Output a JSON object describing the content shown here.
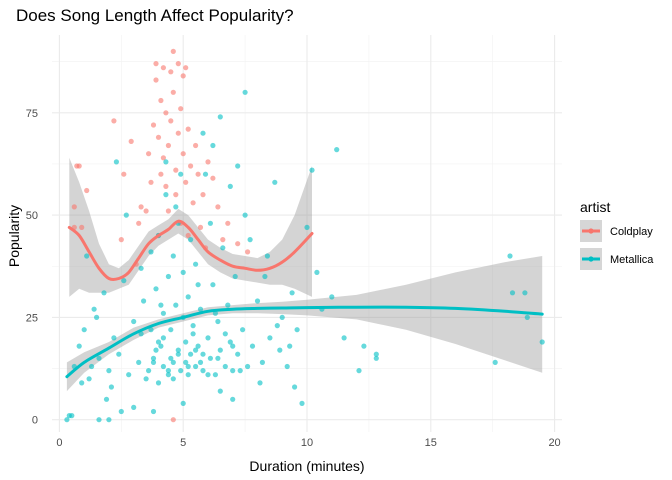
{
  "chart_data": {
    "type": "scatter",
    "title": "Does Song Length Affect Popularity?",
    "xlabel": "Duration (minutes)",
    "ylabel": "Popularity",
    "xlim": [
      -0.3,
      20.3
    ],
    "ylim": [
      -3,
      94
    ],
    "x_ticks": [
      0,
      5,
      10,
      15,
      20
    ],
    "y_ticks": [
      0,
      25,
      50,
      75
    ],
    "grid": true,
    "legend": {
      "title": "artist",
      "placement": "right"
    },
    "colors": {
      "Coldplay": "#F8766D",
      "Metallica": "#00BFC4",
      "band": "#999999"
    },
    "series": [
      {
        "name": "Coldplay",
        "points": [
          [
            0.7,
            62
          ],
          [
            0.8,
            62
          ],
          [
            0.6,
            52
          ],
          [
            0.9,
            47
          ],
          [
            0.6,
            47
          ],
          [
            1.1,
            56
          ],
          [
            2.2,
            73
          ],
          [
            2.6,
            60
          ],
          [
            2.9,
            68
          ],
          [
            3.2,
            48
          ],
          [
            3.3,
            52
          ],
          [
            3.5,
            51
          ],
          [
            3.6,
            65
          ],
          [
            3.7,
            58
          ],
          [
            3.8,
            72
          ],
          [
            3.9,
            87
          ],
          [
            3.9,
            83
          ],
          [
            4.0,
            69
          ],
          [
            4.1,
            60
          ],
          [
            4.1,
            78
          ],
          [
            4.2,
            64
          ],
          [
            4.2,
            86
          ],
          [
            4.3,
            75
          ],
          [
            4.3,
            57
          ],
          [
            4.4,
            67
          ],
          [
            4.4,
            51
          ],
          [
            4.5,
            73
          ],
          [
            4.5,
            85
          ],
          [
            4.6,
            90
          ],
          [
            4.6,
            80
          ],
          [
            4.7,
            61
          ],
          [
            4.7,
            55
          ],
          [
            4.8,
            70
          ],
          [
            4.8,
            87
          ],
          [
            4.9,
            76
          ],
          [
            4.9,
            48
          ],
          [
            5.0,
            65
          ],
          [
            5.0,
            84
          ],
          [
            5.1,
            58
          ],
          [
            5.1,
            86
          ],
          [
            5.2,
            71
          ],
          [
            5.2,
            45
          ],
          [
            5.3,
            62
          ],
          [
            5.4,
            53
          ],
          [
            5.5,
            67
          ],
          [
            5.6,
            60
          ],
          [
            5.7,
            47
          ],
          [
            5.8,
            55
          ],
          [
            6.0,
            63
          ],
          [
            6.2,
            59
          ],
          [
            6.4,
            52
          ],
          [
            6.6,
            44
          ],
          [
            6.8,
            48
          ],
          [
            7.2,
            43
          ],
          [
            7.6,
            41
          ],
          [
            4.6,
            0
          ],
          [
            2.5,
            44
          ],
          [
            3.1,
            38
          ],
          [
            4.0,
            45
          ],
          [
            5.9,
            42
          ]
        ],
        "smooth": {
          "x": [
            0.4,
            0.8,
            1.2,
            1.6,
            2.0,
            2.4,
            2.8,
            3.2,
            3.6,
            4.0,
            4.4,
            4.8,
            5.2,
            5.6,
            6.0,
            6.5,
            7.0,
            7.5,
            8.0,
            8.5,
            9.0,
            9.5,
            10.2
          ],
          "y": [
            47,
            45,
            41,
            37,
            34.5,
            34.5,
            36,
            39.5,
            43,
            45,
            46.5,
            48.5,
            47,
            44,
            41,
            39,
            37.5,
            37,
            36.5,
            37,
            38.5,
            41,
            45.5
          ],
          "lo": [
            30,
            32,
            31,
            31,
            31,
            32,
            33,
            36.5,
            40,
            42.5,
            44,
            45.5,
            44,
            41,
            38,
            36,
            34.5,
            34,
            33.5,
            33,
            33,
            32,
            30
          ],
          "hi": [
            64,
            58,
            51,
            43,
            38,
            37,
            39,
            42.5,
            46,
            47.5,
            49,
            51.5,
            50,
            47,
            44,
            42,
            40.5,
            40,
            39.5,
            41,
            44,
            50,
            62
          ]
        }
      },
      {
        "name": "Metallica",
        "points": [
          [
            0.3,
            0
          ],
          [
            0.4,
            1
          ],
          [
            0.5,
            1
          ],
          [
            1.6,
            0
          ],
          [
            2.0,
            0
          ],
          [
            2.5,
            2
          ],
          [
            3.8,
            2
          ],
          [
            3.6,
            12
          ],
          [
            3.7,
            22
          ],
          [
            3.8,
            14
          ],
          [
            3.9,
            32
          ],
          [
            4.0,
            9
          ],
          [
            4.0,
            45
          ],
          [
            4.1,
            18
          ],
          [
            4.2,
            26
          ],
          [
            4.2,
            13
          ],
          [
            4.3,
            55
          ],
          [
            4.4,
            11
          ],
          [
            4.4,
            35
          ],
          [
            4.5,
            15
          ],
          [
            4.5,
            22
          ],
          [
            4.6,
            40
          ],
          [
            4.6,
            10
          ],
          [
            4.7,
            28
          ],
          [
            4.8,
            17
          ],
          [
            4.8,
            48
          ],
          [
            4.9,
            12
          ],
          [
            5.0,
            25
          ],
          [
            5.0,
            36
          ],
          [
            5.1,
            14
          ],
          [
            5.1,
            19
          ],
          [
            5.2,
            30
          ],
          [
            5.2,
            11
          ],
          [
            5.3,
            16
          ],
          [
            5.4,
            23
          ],
          [
            5.5,
            13
          ],
          [
            5.5,
            38
          ],
          [
            5.6,
            18
          ],
          [
            5.7,
            27
          ],
          [
            5.8,
            12
          ],
          [
            5.9,
            60
          ],
          [
            6.0,
            20
          ],
          [
            6.1,
            15
          ],
          [
            6.2,
            33
          ],
          [
            6.3,
            11
          ],
          [
            6.4,
            24
          ],
          [
            6.5,
            17
          ],
          [
            6.6,
            42
          ],
          [
            6.7,
            13
          ],
          [
            6.8,
            28
          ],
          [
            6.9,
            19
          ],
          [
            7.0,
            12
          ],
          [
            7.1,
            35
          ],
          [
            7.2,
            16
          ],
          [
            7.4,
            22
          ],
          [
            7.5,
            50
          ],
          [
            7.6,
            13
          ],
          [
            7.8,
            18
          ],
          [
            8.0,
            29
          ],
          [
            8.2,
            14
          ],
          [
            8.4,
            40
          ],
          [
            8.5,
            20
          ],
          [
            8.7,
            58
          ],
          [
            8.9,
            17
          ],
          [
            9.0,
            25
          ],
          [
            9.2,
            13
          ],
          [
            9.4,
            31
          ],
          [
            9.6,
            22
          ],
          [
            9.8,
            4
          ],
          [
            10.0,
            47
          ],
          [
            10.2,
            61
          ],
          [
            10.4,
            36
          ],
          [
            10.6,
            27
          ],
          [
            11.0,
            30
          ],
          [
            11.2,
            66
          ],
          [
            11.5,
            20
          ],
          [
            12.1,
            12
          ],
          [
            12.3,
            18
          ],
          [
            12.8,
            16
          ],
          [
            12.8,
            15
          ],
          [
            17.6,
            14
          ],
          [
            18.2,
            40
          ],
          [
            18.3,
            31
          ],
          [
            18.8,
            31
          ],
          [
            18.9,
            25
          ],
          [
            19.5,
            19
          ],
          [
            0.6,
            13
          ],
          [
            0.8,
            18
          ],
          [
            1.0,
            22
          ],
          [
            1.2,
            10
          ],
          [
            1.4,
            27
          ],
          [
            1.6,
            15
          ],
          [
            1.8,
            31
          ],
          [
            2.0,
            12
          ],
          [
            2.2,
            20
          ],
          [
            2.4,
            16
          ],
          [
            2.6,
            34
          ],
          [
            2.8,
            11
          ],
          [
            3.0,
            24
          ],
          [
            3.2,
            14
          ],
          [
            3.4,
            29
          ],
          [
            3.5,
            10
          ],
          [
            3.7,
            41
          ],
          [
            3.9,
            17
          ],
          [
            4.3,
            63
          ],
          [
            4.7,
            52
          ],
          [
            5.3,
            44
          ],
          [
            5.8,
            70
          ],
          [
            6.2,
            67
          ],
          [
            6.5,
            74
          ],
          [
            7.2,
            62
          ],
          [
            7.5,
            80
          ],
          [
            6.9,
            57
          ],
          [
            5.6,
            33
          ],
          [
            4.1,
            28
          ],
          [
            2.3,
            63
          ],
          [
            1.1,
            40
          ],
          [
            1.5,
            25
          ],
          [
            3.3,
            37
          ],
          [
            2.7,
            50
          ],
          [
            8.1,
            9
          ],
          [
            7.0,
            5
          ],
          [
            6.5,
            7
          ],
          [
            9.5,
            8
          ],
          [
            5.0,
            4
          ],
          [
            3.0,
            3
          ],
          [
            1.9,
            5
          ],
          [
            4.9,
            60
          ],
          [
            6.1,
            48
          ],
          [
            7.7,
            44
          ],
          [
            8.3,
            35
          ],
          [
            5.4,
            21
          ],
          [
            4.8,
            16
          ],
          [
            6.3,
            26
          ],
          [
            4.0,
            19
          ],
          [
            3.3,
            21
          ],
          [
            2.1,
            8
          ],
          [
            1.3,
            13
          ],
          [
            0.9,
            9
          ],
          [
            5.7,
            14
          ],
          [
            6.7,
            21
          ],
          [
            7.3,
            12
          ],
          [
            8.8,
            23
          ],
          [
            9.3,
            18
          ],
          [
            4.4,
            12
          ],
          [
            5.2,
            13
          ],
          [
            6.0,
            11
          ],
          [
            4.6,
            14
          ],
          [
            5.8,
            16
          ],
          [
            3.8,
            15
          ],
          [
            6.4,
            15
          ],
          [
            7.0,
            18
          ],
          [
            4.2,
            20
          ],
          [
            5.5,
            17
          ]
        ],
        "smooth": {
          "x": [
            0.3,
            1.0,
            2.0,
            3.0,
            4.0,
            5.0,
            6.0,
            7.0,
            8.0,
            9.0,
            10.0,
            12.0,
            14.0,
            16.0,
            18.0,
            19.5
          ],
          "y": [
            10.5,
            14,
            17.5,
            21,
            23.5,
            25,
            26.5,
            27,
            27.2,
            27.3,
            27.4,
            27.5,
            27.5,
            27.2,
            26.5,
            25.8
          ],
          "lo": [
            7,
            11.5,
            16,
            19.5,
            22.5,
            24,
            25.5,
            26,
            26,
            25.8,
            25.5,
            24.5,
            22,
            18.5,
            14.5,
            11.5
          ],
          "hi": [
            14,
            16.5,
            19,
            22.5,
            24.5,
            26,
            27.5,
            28,
            28.5,
            28.8,
            29.3,
            30.5,
            33,
            36,
            38.5,
            40
          ]
        }
      }
    ]
  }
}
